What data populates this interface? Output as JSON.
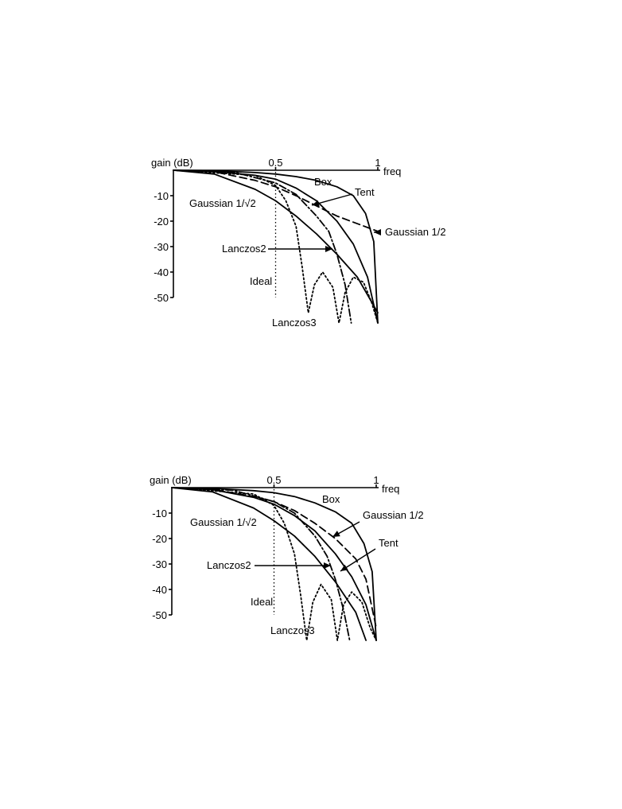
{
  "chart_data": [
    {
      "type": "line",
      "ylabel": "gain (dB)",
      "xlabel": "freq",
      "xlim": [
        0,
        1
      ],
      "ylim": [
        -50,
        0
      ],
      "x_ticks": [
        "0.5",
        "1"
      ],
      "y_ticks": [
        "-10",
        "-20",
        "-30",
        "-40",
        "-50"
      ],
      "ideal_cutoff": 0.5,
      "ideal_label": "Ideal",
      "series": [
        {
          "name": "Box",
          "style": "solid",
          "points": [
            [
              0,
              0
            ],
            [
              0.2,
              -0.2
            ],
            [
              0.4,
              -0.9
            ],
            [
              0.5,
              -1.5
            ],
            [
              0.6,
              -2.5
            ],
            [
              0.7,
              -4.0
            ],
            [
              0.8,
              -6.5
            ],
            [
              0.88,
              -10
            ],
            [
              0.94,
              -17
            ],
            [
              0.98,
              -28
            ],
            [
              1.0,
              -60
            ]
          ]
        },
        {
          "name": "Tent",
          "style": "solid",
          "points": [
            [
              0,
              0
            ],
            [
              0.2,
              -0.5
            ],
            [
              0.4,
              -2.0
            ],
            [
              0.5,
              -3.5
            ],
            [
              0.6,
              -7.0
            ],
            [
              0.7,
              -12
            ],
            [
              0.8,
              -20
            ],
            [
              0.88,
              -29
            ],
            [
              0.95,
              -42
            ],
            [
              1.0,
              -60
            ]
          ]
        },
        {
          "name": "Gaussian 1/2",
          "style": "dashed",
          "points": [
            [
              0,
              0
            ],
            [
              0.2,
              -0.6
            ],
            [
              0.4,
              -4.0
            ],
            [
              0.5,
              -6.5
            ],
            [
              0.6,
              -10
            ],
            [
              0.7,
              -14
            ],
            [
              0.8,
              -18
            ],
            [
              0.9,
              -21
            ],
            [
              1.0,
              -24
            ]
          ]
        },
        {
          "name": "Gaussian 1/√2",
          "style": "solid",
          "points": [
            [
              0,
              0
            ],
            [
              0.2,
              -1.5
            ],
            [
              0.4,
              -7.5
            ],
            [
              0.5,
              -12
            ],
            [
              0.6,
              -18
            ],
            [
              0.7,
              -25
            ],
            [
              0.8,
              -33
            ],
            [
              0.9,
              -42
            ],
            [
              1.0,
              -56
            ]
          ]
        },
        {
          "name": "Lanczos2",
          "style": "dash-dot",
          "points": [
            [
              0,
              0
            ],
            [
              0.3,
              -0.8
            ],
            [
              0.5,
              -5.0
            ],
            [
              0.6,
              -9.5
            ],
            [
              0.7,
              -18
            ],
            [
              0.76,
              -24
            ],
            [
              0.8,
              -33
            ],
            [
              0.84,
              -45
            ],
            [
              0.87,
              -60
            ]
          ]
        },
        {
          "name": "Lanczos3",
          "style": "dotted",
          "points": [
            [
              0,
              0
            ],
            [
              0.4,
              -2.0
            ],
            [
              0.5,
              -6.0
            ],
            [
              0.55,
              -12
            ],
            [
              0.6,
              -22
            ],
            [
              0.63,
              -38
            ],
            [
              0.66,
              -56
            ],
            [
              0.69,
              -45
            ],
            [
              0.73,
              -40
            ],
            [
              0.78,
              -46
            ],
            [
              0.81,
              -60
            ],
            [
              0.84,
              -48
            ],
            [
              0.88,
              -42
            ],
            [
              0.93,
              -44
            ],
            [
              0.97,
              -52
            ],
            [
              1.0,
              -60
            ]
          ]
        }
      ]
    },
    {
      "type": "line",
      "ylabel": "gain (dB)",
      "xlabel": "freq",
      "xlim": [
        0,
        1
      ],
      "ylim": [
        -50,
        0
      ],
      "x_ticks": [
        "0.5",
        "1"
      ],
      "y_ticks": [
        "-10",
        "-20",
        "-30",
        "-40",
        "-50"
      ],
      "ideal_cutoff": 0.5,
      "ideal_label": "Ideal",
      "series": [
        {
          "name": "Box",
          "style": "solid",
          "points": [
            [
              0,
              0
            ],
            [
              0.2,
              -0.3
            ],
            [
              0.4,
              -1.2
            ],
            [
              0.5,
              -2.0
            ],
            [
              0.6,
              -3.5
            ],
            [
              0.7,
              -6.0
            ],
            [
              0.8,
              -9.5
            ],
            [
              0.88,
              -14
            ],
            [
              0.94,
              -22
            ],
            [
              0.98,
              -33
            ],
            [
              1.0,
              -60
            ]
          ]
        },
        {
          "name": "Gaussian 1/2",
          "style": "dashed",
          "points": [
            [
              0,
              0
            ],
            [
              0.2,
              -0.7
            ],
            [
              0.4,
              -3.5
            ],
            [
              0.5,
              -5.5
            ],
            [
              0.6,
              -9.0
            ],
            [
              0.7,
              -14
            ],
            [
              0.8,
              -20
            ],
            [
              0.9,
              -28
            ],
            [
              0.95,
              -36
            ],
            [
              1.0,
              -55
            ]
          ]
        },
        {
          "name": "Tent",
          "style": "solid",
          "points": [
            [
              0,
              0
            ],
            [
              0.2,
              -0.8
            ],
            [
              0.4,
              -3.8
            ],
            [
              0.5,
              -6.5
            ],
            [
              0.6,
              -11
            ],
            [
              0.7,
              -17
            ],
            [
              0.8,
              -26
            ],
            [
              0.88,
              -35
            ],
            [
              0.95,
              -46
            ],
            [
              1.0,
              -60
            ]
          ]
        },
        {
          "name": "Gaussian 1/√2",
          "style": "solid",
          "points": [
            [
              0,
              0
            ],
            [
              0.2,
              -1.7
            ],
            [
              0.4,
              -8.0
            ],
            [
              0.5,
              -13
            ],
            [
              0.6,
              -19
            ],
            [
              0.7,
              -27
            ],
            [
              0.8,
              -37
            ],
            [
              0.9,
              -49
            ],
            [
              0.95,
              -60
            ]
          ]
        },
        {
          "name": "Lanczos2",
          "style": "dash-dot",
          "points": [
            [
              0,
              0
            ],
            [
              0.3,
              -1.0
            ],
            [
              0.5,
              -5.5
            ],
            [
              0.6,
              -10
            ],
            [
              0.7,
              -19
            ],
            [
              0.76,
              -27
            ],
            [
              0.8,
              -36
            ],
            [
              0.84,
              -48
            ],
            [
              0.87,
              -60
            ]
          ]
        },
        {
          "name": "Lanczos3",
          "style": "dotted",
          "points": [
            [
              0,
              0
            ],
            [
              0.4,
              -2.5
            ],
            [
              0.5,
              -7.0
            ],
            [
              0.55,
              -14
            ],
            [
              0.6,
              -26
            ],
            [
              0.63,
              -42
            ],
            [
              0.66,
              -60
            ],
            [
              0.69,
              -45
            ],
            [
              0.73,
              -38
            ],
            [
              0.78,
              -44
            ],
            [
              0.81,
              -60
            ],
            [
              0.84,
              -46
            ],
            [
              0.88,
              -41
            ],
            [
              0.93,
              -45
            ],
            [
              0.97,
              -55
            ],
            [
              1.0,
              -60
            ]
          ]
        }
      ]
    }
  ],
  "annotations": [
    [
      "Box",
      "Tent",
      "Gaussian 1/√2",
      "Gaussian 1/2",
      "Lanczos2",
      "Lanczos3",
      "Ideal"
    ],
    [
      "Box",
      "Gaussian 1/2",
      "Gaussian 1/√2",
      "Tent",
      "Lanczos2",
      "Ideal",
      "Lanczos3"
    ]
  ]
}
